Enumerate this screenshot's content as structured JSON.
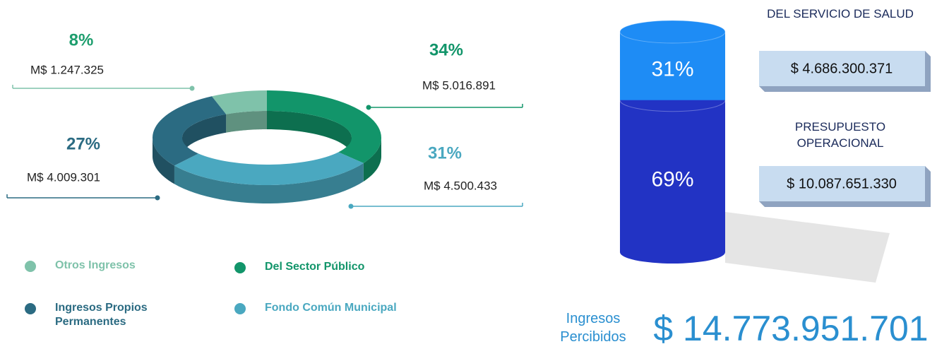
{
  "chart_data": [
    {
      "type": "donut",
      "categories": [
        "Otros Ingresos",
        "Del Sector Público",
        "Fondo Común Municipal",
        "Ingresos Propios Permanentes"
      ],
      "values": [
        8,
        34,
        31,
        27
      ],
      "value_labels": [
        "8%",
        "34%",
        "31%",
        "27%"
      ],
      "amounts": [
        "M$ 1.247.325",
        "M$ 5.016.891",
        "M$ 4.500.433",
        "M$ 4.009.301"
      ],
      "colors": [
        "#7fc2aa",
        "#12956a",
        "#4aa8c0",
        "#2b6b82"
      ]
    },
    {
      "type": "cylinder",
      "series": [
        {
          "name": "PRESUPUESTO OPERACIONAL",
          "values": [
            69
          ],
          "value_labels": [
            "69%"
          ],
          "amount": "$ 10.087.651.330",
          "color": "#2233c4"
        },
        {
          "name": "DEL SERVICIO DE SALUD",
          "values": [
            31
          ],
          "value_labels": [
            "31%"
          ],
          "amount": "$ 4.686.300.371",
          "color": "#1e8cf5"
        }
      ],
      "total_label": "Ingresos Percibidos",
      "total": "$ 14.773.951.701"
    }
  ]
}
